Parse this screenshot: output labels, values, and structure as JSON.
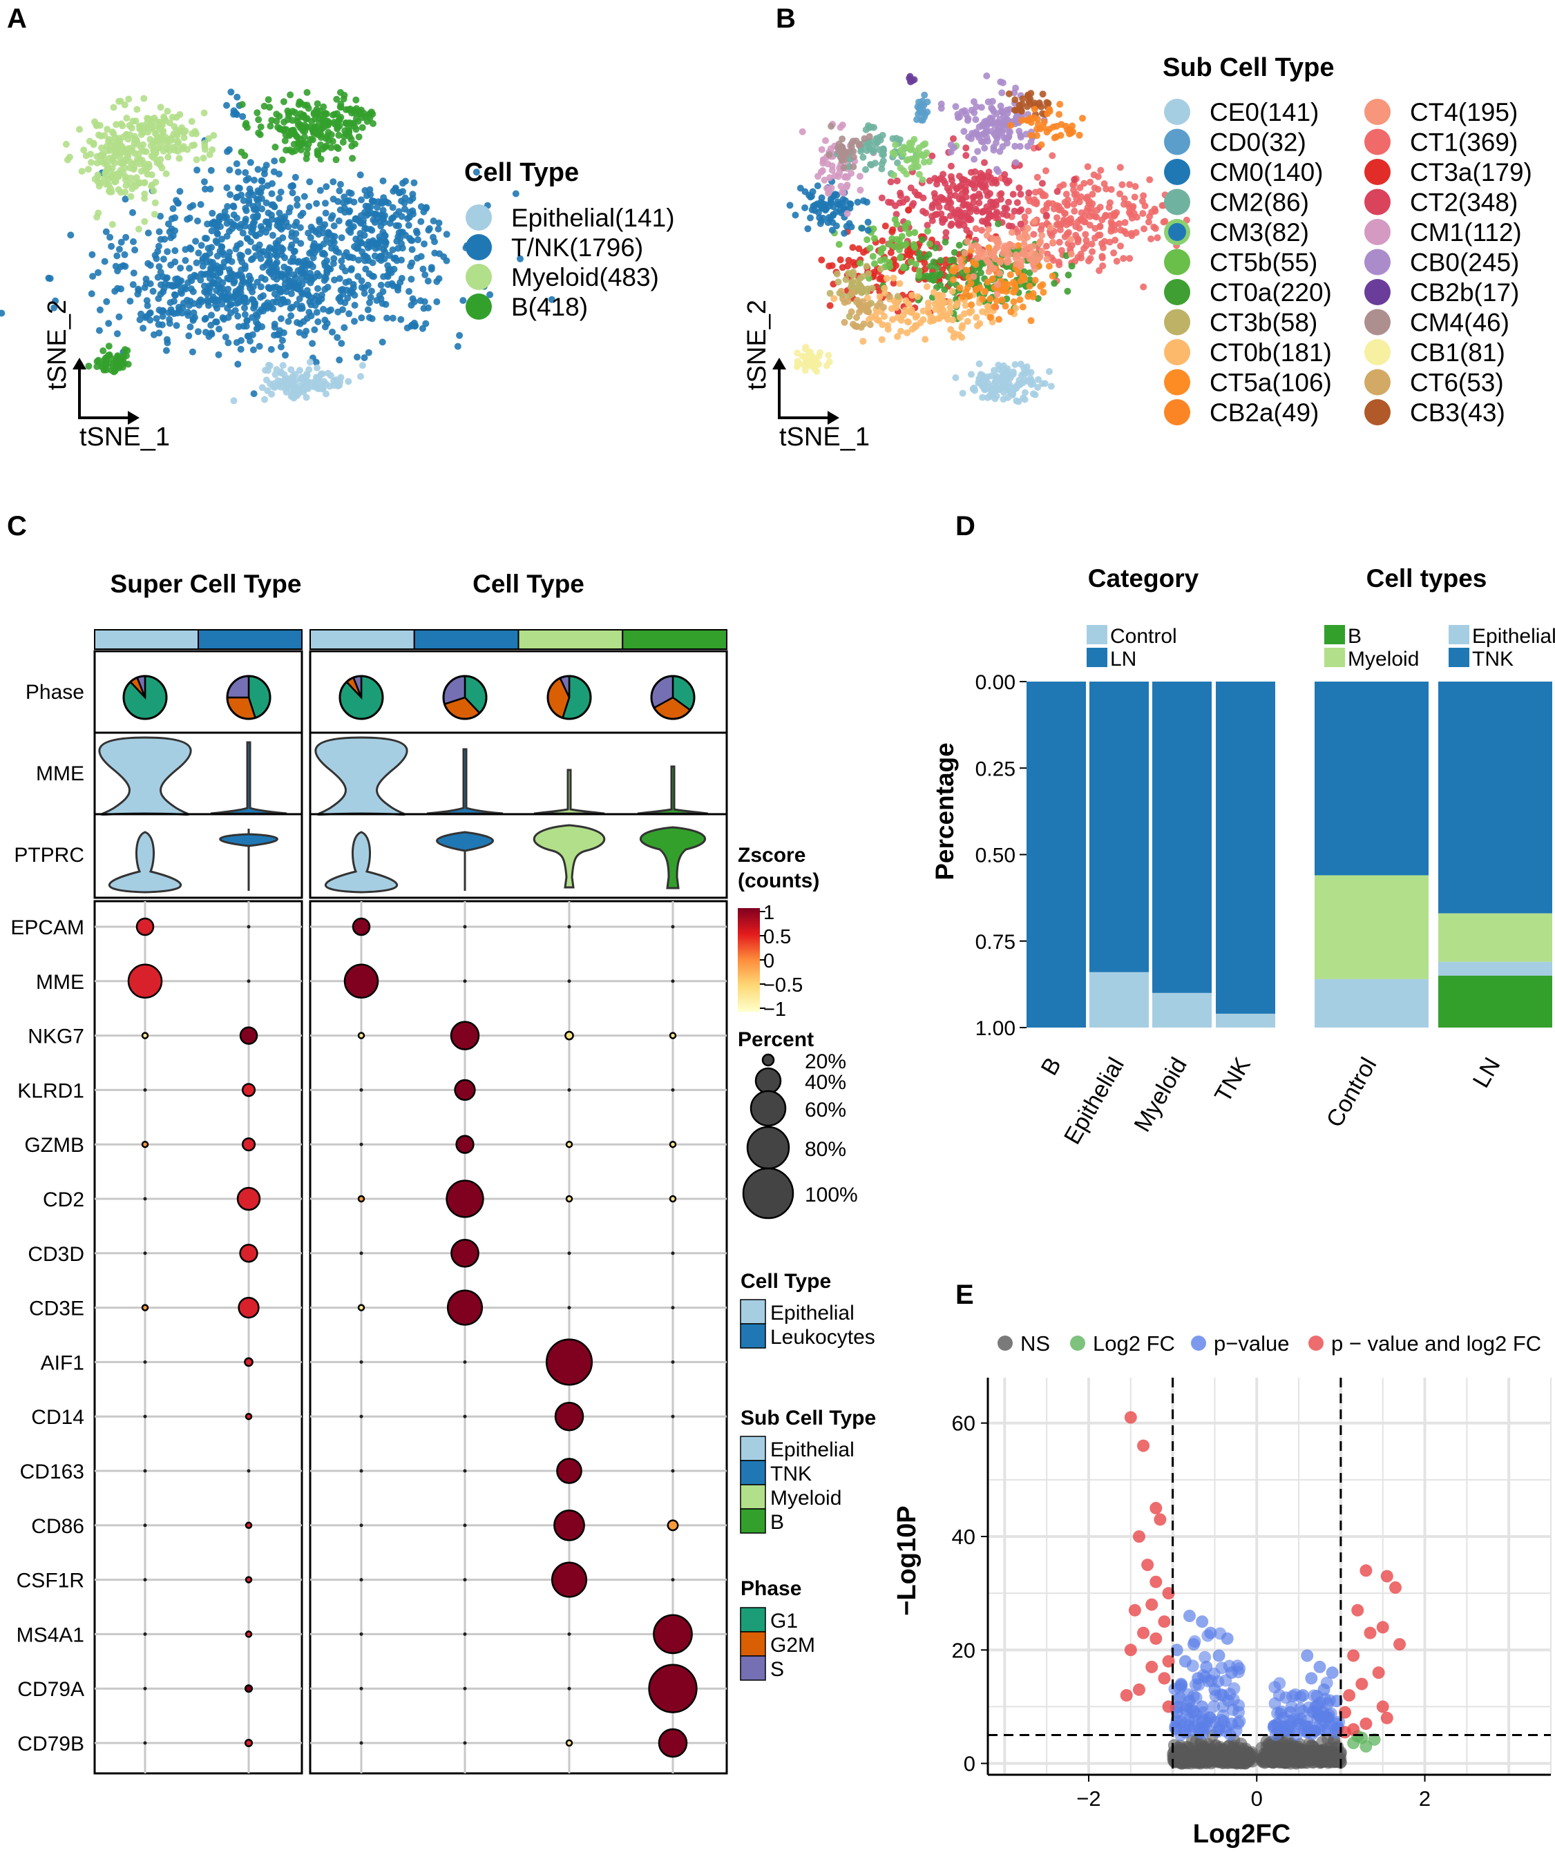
{
  "panels": {
    "A": "A",
    "B": "B",
    "C": "C",
    "D": "D",
    "E": "E"
  },
  "panel_a": {
    "legend_title": "Cell Type",
    "legend": [
      {
        "label": "Epithelial(141)",
        "color": "#a6cee3"
      },
      {
        "label": "T/NK(1796)",
        "color": "#1f78b4"
      },
      {
        "label": "Myeloid(483)",
        "color": "#b2df8a"
      },
      {
        "label": "B(418)",
        "color": "#33a02c"
      }
    ],
    "xlabel": "tSNE_1",
    "ylabel": "tSNE_2"
  },
  "panel_b": {
    "legend_title": "Sub Cell Type",
    "legend": [
      {
        "label": "CE0(141)",
        "color": "#a6cee3"
      },
      {
        "label": "CD0(32)",
        "color": "#5b9ecb"
      },
      {
        "label": "CM0(140)",
        "color": "#1f78b4"
      },
      {
        "label": "CM2(86)",
        "color": "#70b2a0"
      },
      {
        "label": "CM3(82)",
        "color": "#1f78b4",
        "ring": "#8bd070"
      },
      {
        "label": "CT5b(55)",
        "color": "#6abf4a"
      },
      {
        "label": "CT0a(220)",
        "color": "#3f9f32"
      },
      {
        "label": "CT3b(58)",
        "color": "#bdb265"
      },
      {
        "label": "CT0b(181)",
        "color": "#fdb96b"
      },
      {
        "label": "CT5a(106)",
        "color": "#fd8c25"
      },
      {
        "label": "CB2a(49)",
        "color": "#fb8524"
      },
      {
        "label": "CT4(195)",
        "color": "#f7967a"
      },
      {
        "label": "CT1(369)",
        "color": "#f06a6a"
      },
      {
        "label": "CT3a(179)",
        "color": "#e22c27"
      },
      {
        "label": "CT2(348)",
        "color": "#d9435b"
      },
      {
        "label": "CM1(112)",
        "color": "#d49ac2"
      },
      {
        "label": "CB0(245)",
        "color": "#ab8ccb"
      },
      {
        "label": "CB2b(17)",
        "color": "#6a3d9a"
      },
      {
        "label": "CM4(46)",
        "color": "#ad8f8f"
      },
      {
        "label": "CB1(81)",
        "color": "#f6f0a0"
      },
      {
        "label": "CT6(53)",
        "color": "#d2aa65"
      },
      {
        "label": "CB3(43)",
        "color": "#b15928"
      }
    ],
    "xlabel": "tSNE_1",
    "ylabel": "tSNE_2"
  },
  "panel_c": {
    "title_left": "Super Cell Type",
    "title_right": "Cell Type",
    "row_phase": "Phase",
    "row_mme": "MME",
    "row_ptprc": "PTPRC",
    "genes": [
      "EPCAM",
      "MME",
      "NKG7",
      "KLRD1",
      "GZMB",
      "CD2",
      "CD3D",
      "CD3E",
      "AIF1",
      "CD14",
      "CD163",
      "CD86",
      "CSF1R",
      "MS4A1",
      "CD79A",
      "CD79B"
    ],
    "super_colors": [
      "#a6cee3",
      "#1f78b4"
    ],
    "cell_colors": [
      "#a6cee3",
      "#1f78b4",
      "#b2df8a",
      "#33a02c"
    ],
    "phase_colors": [
      "#1b9e77",
      "#d95f02",
      "#7570b3"
    ],
    "phase_fractions": [
      [
        0.88,
        0.06,
        0.06
      ],
      [
        0.45,
        0.3,
        0.25
      ],
      [
        0.88,
        0.06,
        0.06
      ],
      [
        0.38,
        0.32,
        0.3
      ],
      [
        0.55,
        0.38,
        0.07
      ],
      [
        0.35,
        0.32,
        0.33
      ]
    ],
    "super_dot_size": [
      [
        30,
        0
      ],
      [
        60,
        0
      ],
      [
        8,
        30
      ],
      [
        0,
        22
      ],
      [
        6,
        22
      ],
      [
        0,
        40
      ],
      [
        0,
        31
      ],
      [
        8,
        36
      ],
      [
        0,
        14
      ],
      [
        0,
        8
      ],
      [
        0,
        0
      ],
      [
        0,
        10
      ],
      [
        0,
        10
      ],
      [
        0,
        10
      ],
      [
        0,
        12
      ],
      [
        0,
        12
      ]
    ],
    "super_dot_z": [
      [
        0.5,
        0
      ],
      [
        0.5,
        0
      ],
      [
        -0.9,
        0.8
      ],
      [
        0,
        0.7
      ],
      [
        0,
        0.7
      ],
      [
        0,
        0.5
      ],
      [
        0,
        0.6
      ],
      [
        0,
        0.6
      ],
      [
        0,
        0.6
      ],
      [
        0,
        0.6
      ],
      [
        0,
        0
      ],
      [
        0,
        0.6
      ],
      [
        0,
        0.6
      ],
      [
        0,
        0.6
      ],
      [
        0,
        0.8
      ],
      [
        0,
        0.6
      ]
    ],
    "cell_dot_size": [
      [
        30,
        0,
        0,
        0
      ],
      [
        60,
        0,
        0,
        0
      ],
      [
        9,
        50,
        14,
        10
      ],
      [
        0,
        36,
        0,
        0
      ],
      [
        0,
        31,
        8,
        6
      ],
      [
        6,
        66,
        10,
        9
      ],
      [
        0,
        49,
        0,
        0
      ],
      [
        8,
        62,
        0,
        0
      ],
      [
        0,
        0,
        82,
        0
      ],
      [
        0,
        0,
        50,
        0
      ],
      [
        0,
        0,
        44,
        0
      ],
      [
        0,
        0,
        54,
        18
      ],
      [
        0,
        0,
        62,
        0
      ],
      [
        0,
        0,
        0,
        69
      ],
      [
        0,
        0,
        0,
        86
      ],
      [
        0,
        0,
        8,
        50
      ]
    ],
    "cell_dot_z": [
      [
        1,
        0,
        0,
        0
      ],
      [
        1,
        0,
        0,
        0
      ],
      [
        -0.9,
        1,
        -0.9,
        -0.9
      ],
      [
        0,
        1,
        0,
        0
      ],
      [
        0,
        1,
        -0.9,
        -0.9
      ],
      [
        0,
        1,
        -0.9,
        -0.9
      ],
      [
        0,
        1,
        0,
        0
      ],
      [
        -0.9,
        1,
        0,
        0
      ],
      [
        0,
        0,
        1,
        0
      ],
      [
        0,
        0,
        1,
        0
      ],
      [
        0,
        0,
        1,
        0
      ],
      [
        0,
        0,
        1,
        -0.2
      ],
      [
        0,
        0,
        1,
        0
      ],
      [
        0,
        0,
        0,
        1
      ],
      [
        0,
        0,
        0,
        1
      ],
      [
        0,
        0,
        -0.9,
        1
      ]
    ],
    "zscore_title1": "Zscore",
    "zscore_title2": "(counts)",
    "zscore_ticks": [
      "1",
      "0.5",
      "0",
      "−0.5",
      "−1"
    ],
    "percent_title": "Percent",
    "percent_items": [
      "20%",
      "40%",
      "60%",
      "80%",
      "100%"
    ],
    "legend_cell_type_title": "Cell Type",
    "legend_cell_type": [
      {
        "label": "Epithelial",
        "color": "#a6cee3"
      },
      {
        "label": "Leukocytes",
        "color": "#1f78b4"
      }
    ],
    "legend_sub_title": "Sub Cell Type",
    "legend_sub": [
      {
        "label": "Epithelial",
        "color": "#a6cee3"
      },
      {
        "label": "TNK",
        "color": "#1f78b4"
      },
      {
        "label": "Myeloid",
        "color": "#b2df8a"
      },
      {
        "label": "B",
        "color": "#33a02c"
      }
    ],
    "legend_phase_title": "Phase",
    "legend_phase": [
      {
        "label": "G1",
        "color": "#1b9e77"
      },
      {
        "label": "G2M",
        "color": "#d95f02"
      },
      {
        "label": "S",
        "color": "#7570b3"
      }
    ]
  },
  "chart_data": [
    {
      "type": "bar",
      "panel": "D-left",
      "title": "Category",
      "ylabel": "Percentage",
      "y_ticks": [
        "0.00",
        "0.25",
        "0.50",
        "0.75",
        "1.00"
      ],
      "categories": [
        "B",
        "Epithelial",
        "Myeloid",
        "TNK"
      ],
      "series": [
        {
          "name": "Control",
          "color": "#a6cee3",
          "values": [
            0.0,
            0.16,
            0.1,
            0.04
          ]
        },
        {
          "name": "LN",
          "color": "#1f78b4",
          "values": [
            1.0,
            0.84,
            0.9,
            0.96
          ]
        }
      ]
    },
    {
      "type": "bar",
      "panel": "D-right",
      "title": "Cell types",
      "categories": [
        "Control",
        "LN"
      ],
      "series": [
        {
          "name": "B",
          "color": "#33a02c",
          "values": [
            0.0,
            0.15
          ]
        },
        {
          "name": "Epithelial",
          "color": "#a6cee3",
          "values": [
            0.14,
            0.04
          ]
        },
        {
          "name": "Myeloid",
          "color": "#b2df8a",
          "values": [
            0.3,
            0.14
          ]
        },
        {
          "name": "TNK",
          "color": "#1f78b4",
          "values": [
            0.56,
            0.67
          ]
        }
      ]
    },
    {
      "type": "scatter",
      "panel": "E",
      "xlabel": "Log2FC",
      "ylabel": "−Log10P",
      "xlim": [
        -3.2,
        3.5
      ],
      "ylim": [
        -2,
        68
      ],
      "x_ticks": [
        -2,
        0,
        2
      ],
      "y_ticks": [
        0,
        20,
        40,
        60
      ],
      "fc_cutoff": 1,
      "p_cutoff": 5,
      "legend": [
        {
          "name": "NS",
          "color": "#595959"
        },
        {
          "name": "Log2 FC",
          "color": "#5db35d"
        },
        {
          "name": "p−value",
          "color": "#5b7fe8"
        },
        {
          "name": "p − value and log2 FC",
          "color": "#e8474a"
        }
      ],
      "significant_points": [
        [
          -1.5,
          61
        ],
        [
          -1.35,
          56
        ],
        [
          -1.2,
          45
        ],
        [
          -1.15,
          43
        ],
        [
          -1.4,
          40
        ],
        [
          -1.3,
          35
        ],
        [
          -1.2,
          32
        ],
        [
          -1.05,
          30
        ],
        [
          -1.25,
          28
        ],
        [
          -1.45,
          27
        ],
        [
          -1.1,
          25
        ],
        [
          -1.35,
          23
        ],
        [
          -1.2,
          22
        ],
        [
          -1.5,
          20
        ],
        [
          -1.05,
          18
        ],
        [
          -1.25,
          17
        ],
        [
          -1.1,
          15
        ],
        [
          -1.4,
          13
        ],
        [
          -1.55,
          12
        ],
        [
          -1.05,
          10
        ],
        [
          1.3,
          34
        ],
        [
          1.55,
          33
        ],
        [
          1.65,
          31
        ],
        [
          1.2,
          27
        ],
        [
          1.5,
          24
        ],
        [
          1.35,
          23
        ],
        [
          1.7,
          21
        ],
        [
          1.15,
          19
        ],
        [
          1.45,
          16
        ],
        [
          1.25,
          14
        ],
        [
          1.1,
          12
        ],
        [
          1.5,
          10
        ],
        [
          1.05,
          9
        ],
        [
          1.3,
          7
        ],
        [
          1.55,
          8
        ],
        [
          1.15,
          6
        ],
        [
          1.05,
          5.5
        ]
      ],
      "fc_only_points": [
        [
          1.25,
          4.5
        ],
        [
          1.15,
          3.6
        ],
        [
          1.3,
          3.0
        ],
        [
          1.4,
          4.2
        ],
        [
          1.2,
          4.8
        ]
      ],
      "p_only_points": [
        [
          -0.8,
          26
        ],
        [
          -0.65,
          25
        ],
        [
          -0.55,
          23
        ],
        [
          -0.35,
          22
        ],
        [
          -0.75,
          21
        ],
        [
          -0.95,
          20
        ],
        [
          -0.45,
          19
        ],
        [
          -0.85,
          18
        ],
        [
          -0.6,
          17
        ],
        [
          -0.3,
          16
        ],
        [
          -0.7,
          15
        ],
        [
          -0.9,
          14
        ],
        [
          -0.5,
          13
        ],
        [
          -0.4,
          12
        ],
        [
          -0.8,
          11
        ],
        [
          -0.65,
          10
        ],
        [
          -0.95,
          9
        ],
        [
          -0.55,
          8
        ],
        [
          -0.3,
          7
        ],
        [
          -0.75,
          6.5
        ],
        [
          -0.45,
          6
        ],
        [
          -0.85,
          5.5
        ],
        [
          0.6,
          19
        ],
        [
          0.75,
          17
        ],
        [
          0.9,
          16
        ],
        [
          0.65,
          15
        ],
        [
          0.8,
          13
        ],
        [
          0.55,
          12
        ],
        [
          0.95,
          11
        ],
        [
          0.7,
          10
        ],
        [
          0.4,
          9
        ],
        [
          0.85,
          8
        ],
        [
          0.5,
          7
        ],
        [
          0.3,
          6.5
        ],
        [
          0.75,
          6
        ],
        [
          0.6,
          5.5
        ],
        [
          0.95,
          7
        ]
      ]
    }
  ]
}
